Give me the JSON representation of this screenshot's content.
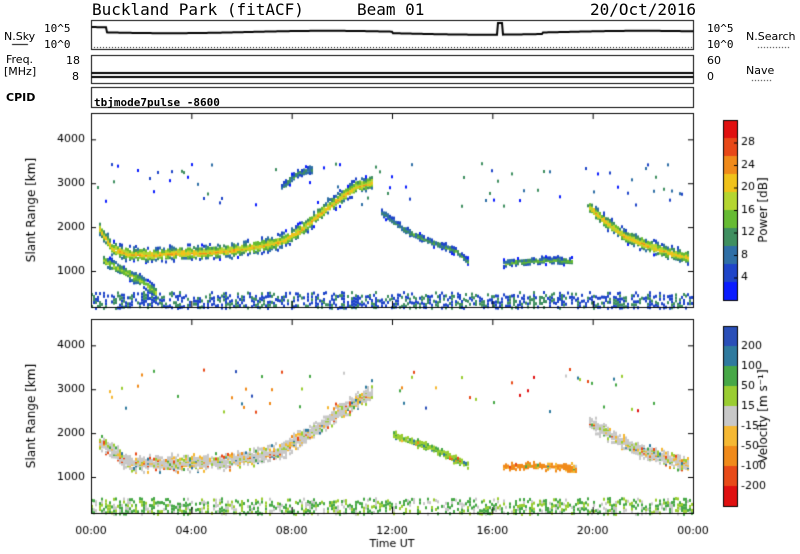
{
  "header": {
    "title": "Buckland Park (fitACF)",
    "beam": "Beam 01",
    "date": "20/Oct/2016"
  },
  "side_labels": {
    "nsky": "N.Sky",
    "nsearch": "N.Search",
    "freq": "Freq.",
    "mhz": "[MHz]",
    "nave": "Nave",
    "cpid": "CPID",
    "cpid_value": "tbjmode7pulse  -8600"
  },
  "noise_panel": {
    "left_ticks": [
      "10^5",
      "10^0"
    ],
    "right_ticks": [
      "10^5",
      "10^0"
    ]
  },
  "freq_panel": {
    "left_ticks": [
      "18",
      "8"
    ],
    "right_ticks": [
      "60",
      "0"
    ]
  },
  "colors": {
    "power": [
      "#0a1cff",
      "#1f45c9",
      "#2f6fa6",
      "#3f8f60",
      "#66bb33",
      "#b5d630",
      "#f0c21a",
      "#f08a1a",
      "#e84818",
      "#e01010"
    ],
    "velocity": [
      "#e01010",
      "#e84a18",
      "#f08a1a",
      "#f5b833",
      "#c8c8c8",
      "#9acd32",
      "#47a847",
      "#2f7a9e",
      "#2a4fb8"
    ]
  },
  "chart_data": [
    {
      "type": "heatmap",
      "name": "power",
      "ylabel": "Slant Range [km]",
      "xlabel": "",
      "ylim": [
        180,
        4600
      ],
      "xlim": [
        0,
        24
      ],
      "y_ticks": [
        "1000",
        "2000",
        "3000",
        "4000"
      ],
      "colorbar": {
        "label": "Power [dB]",
        "ticks": [
          "4",
          "8",
          "12",
          "16",
          "20",
          "24",
          "28"
        ],
        "range": [
          0,
          32
        ]
      },
      "bands": [
        {
          "x": [
            0.3,
            0.8,
            1.5,
            2.5,
            3.5,
            4.5,
            5.5,
            6.5,
            7.5,
            8.3,
            9.0,
            9.8,
            10.5,
            11.2
          ],
          "y": [
            2000,
            1550,
            1420,
            1400,
            1450,
            1450,
            1500,
            1580,
            1700,
            1950,
            2300,
            2650,
            2950,
            3050
          ],
          "width": 260,
          "peak": 22
        },
        {
          "x": [
            0.4,
            1.2,
            2.0,
            2.6
          ],
          "y": [
            1300,
            1050,
            800,
            520
          ],
          "width": 200,
          "peak": 18
        },
        {
          "x": [
            7.5,
            8.2,
            8.8
          ],
          "y": [
            2900,
            3250,
            3350
          ],
          "width": 150,
          "peak": 12
        },
        {
          "x": [
            11.5,
            12.5,
            13.5,
            14.5,
            15.0
          ],
          "y": [
            2400,
            1950,
            1700,
            1500,
            1250
          ],
          "width": 140,
          "peak": 12
        },
        {
          "x": [
            16.4,
            17.4,
            18.4,
            19.2
          ],
          "y": [
            1200,
            1250,
            1280,
            1250
          ],
          "width": 130,
          "peak": 14
        },
        {
          "x": [
            19.8,
            20.5,
            21.2,
            22.0,
            23.0,
            23.8
          ],
          "y": [
            2500,
            2150,
            1850,
            1650,
            1450,
            1350
          ],
          "width": 240,
          "peak": 22
        }
      ]
    },
    {
      "type": "heatmap",
      "name": "velocity",
      "ylabel": "Slant Range [km]",
      "xlabel": "Time UT",
      "ylim": [
        180,
        4600
      ],
      "xlim": [
        0,
        24
      ],
      "x_ticks": [
        "00:00",
        "04:00",
        "08:00",
        "12:00",
        "16:00",
        "20:00",
        "00:00"
      ],
      "y_ticks": [
        "1000",
        "2000",
        "3000",
        "4000"
      ],
      "colorbar": {
        "label": "Velocity [m s^-1]",
        "ticks": [
          "-200",
          "-100",
          "-50",
          "-15",
          "15",
          "50",
          "100",
          "200"
        ]
      },
      "bands": [
        {
          "x": [
            0.3,
            1.5,
            3.5,
            5.5,
            7.5,
            9.0,
            10.5,
            11.2
          ],
          "y": [
            1850,
            1350,
            1350,
            1400,
            1600,
            2150,
            2750,
            2950
          ],
          "width": 300,
          "v": 0
        },
        {
          "x": [
            12.0,
            13.5,
            15.0
          ],
          "y": [
            2000,
            1700,
            1300
          ],
          "width": 140,
          "v": 40
        },
        {
          "x": [
            16.4,
            17.5,
            19.3
          ],
          "y": [
            1250,
            1280,
            1250
          ],
          "width": 130,
          "v": -60
        },
        {
          "x": [
            19.8,
            21.5,
            23.8
          ],
          "y": [
            2300,
            1700,
            1300
          ],
          "width": 260,
          "v": 0
        }
      ]
    }
  ]
}
